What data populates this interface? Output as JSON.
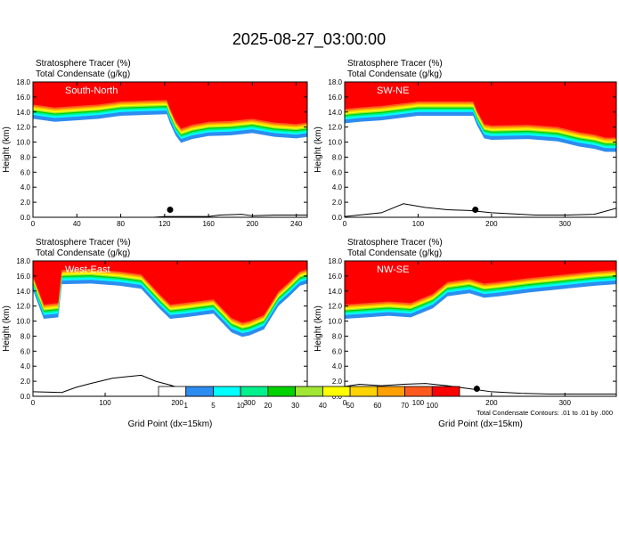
{
  "figure": {
    "title": "2025-08-27_03:00:00",
    "subtitle_line1": "Stratosphere Tracer   (%)",
    "subtitle_line2": "Total Condensate   (g/kg)",
    "contour_note": "Total Condensate Contours: .01 to .01 by .000",
    "colors": [
      "#ffffff",
      "#2d8cf0",
      "#00ffff",
      "#00f08c",
      "#00d200",
      "#a0e632",
      "#ffff00",
      "#ffd200",
      "#ffa000",
      "#ff5a1e",
      "#ff0000"
    ]
  },
  "chart_data": [
    {
      "type": "heatmap",
      "panel_label": "South-North",
      "xlabel": "",
      "ylabel": "Height (km)",
      "xlim": [
        0,
        250
      ],
      "ylim": [
        0,
        18
      ],
      "xticks": [
        0,
        40,
        80,
        120,
        160,
        200,
        240
      ],
      "yticks": [
        "0.0",
        "2.0",
        "4.0",
        "6.0",
        "8.0",
        "10.0",
        "12.0",
        "14.0",
        "16.0",
        "18.0"
      ],
      "tropopause_km": [
        [
          0,
          13.6
        ],
        [
          20,
          13.2
        ],
        [
          40,
          13.4
        ],
        [
          60,
          13.6
        ],
        [
          80,
          14.0
        ],
        [
          100,
          14.1
        ],
        [
          122,
          14.2
        ],
        [
          125,
          13.0
        ],
        [
          130,
          11.4
        ],
        [
          135,
          10.4
        ],
        [
          145,
          10.9
        ],
        [
          160,
          11.3
        ],
        [
          180,
          11.4
        ],
        [
          200,
          11.7
        ],
        [
          220,
          11.2
        ],
        [
          240,
          11.0
        ],
        [
          250,
          11.2
        ]
      ],
      "terrain_km": [
        [
          0,
          0
        ],
        [
          30,
          0
        ],
        [
          60,
          0
        ],
        [
          90,
          0
        ],
        [
          110,
          0
        ],
        [
          120,
          0.1
        ],
        [
          160,
          0.1
        ],
        [
          170,
          0.3
        ],
        [
          190,
          0.4
        ],
        [
          200,
          0.2
        ],
        [
          220,
          0.3
        ],
        [
          250,
          0.3
        ]
      ],
      "marker": [
        125,
        1.0
      ]
    },
    {
      "type": "heatmap",
      "panel_label": "SW-NE",
      "xlabel": "",
      "ylabel": "Height (km)",
      "xlim": [
        0,
        370
      ],
      "ylim": [
        0,
        18
      ],
      "xticks": [
        0,
        100,
        200,
        300
      ],
      "yticks": [
        "0.0",
        "2.0",
        "4.0",
        "6.0",
        "8.0",
        "10.0",
        "12.0",
        "14.0",
        "16.0",
        "18.0"
      ],
      "tropopause_km": [
        [
          0,
          13.0
        ],
        [
          20,
          13.2
        ],
        [
          50,
          13.4
        ],
        [
          100,
          14.0
        ],
        [
          150,
          14.0
        ],
        [
          175,
          14.0
        ],
        [
          180,
          12.8
        ],
        [
          190,
          11.0
        ],
        [
          200,
          10.8
        ],
        [
          250,
          10.9
        ],
        [
          290,
          10.6
        ],
        [
          320,
          9.9
        ],
        [
          340,
          9.6
        ],
        [
          355,
          9.2
        ],
        [
          370,
          9.2
        ]
      ],
      "terrain_km": [
        [
          0,
          0.1
        ],
        [
          50,
          0.6
        ],
        [
          80,
          1.8
        ],
        [
          110,
          1.3
        ],
        [
          140,
          1.0
        ],
        [
          170,
          0.9
        ],
        [
          200,
          0.6
        ],
        [
          260,
          0.3
        ],
        [
          300,
          0.3
        ],
        [
          340,
          0.4
        ],
        [
          370,
          1.2
        ]
      ],
      "marker": [
        178,
        1.0
      ]
    },
    {
      "type": "heatmap",
      "panel_label": "West-East",
      "xlabel": "Grid Point (dx=15km)",
      "ylabel": "Height (km)",
      "xlim": [
        0,
        380
      ],
      "ylim": [
        0,
        18
      ],
      "xticks": [
        0,
        100,
        200,
        300
      ],
      "yticks": [
        "0.0",
        "2.0",
        "4.0",
        "6.0",
        "8.0",
        "10.0",
        "12.0",
        "14.0",
        "16.0",
        "18.0"
      ],
      "tropopause_km": [
        [
          0,
          14.6
        ],
        [
          15,
          10.8
        ],
        [
          35,
          11.0
        ],
        [
          40,
          15.4
        ],
        [
          80,
          15.5
        ],
        [
          120,
          15.2
        ],
        [
          150,
          14.8
        ],
        [
          175,
          12.2
        ],
        [
          190,
          10.8
        ],
        [
          210,
          11.0
        ],
        [
          250,
          11.5
        ],
        [
          275,
          9.0
        ],
        [
          290,
          8.4
        ],
        [
          300,
          8.6
        ],
        [
          320,
          9.4
        ],
        [
          340,
          12.5
        ],
        [
          355,
          13.8
        ],
        [
          370,
          15.2
        ],
        [
          380,
          15.5
        ]
      ],
      "terrain_km": [
        [
          0,
          0.6
        ],
        [
          40,
          0.5
        ],
        [
          60,
          1.2
        ],
        [
          80,
          1.7
        ],
        [
          110,
          2.4
        ],
        [
          130,
          2.6
        ],
        [
          150,
          2.8
        ],
        [
          170,
          2.0
        ],
        [
          190,
          1.5
        ],
        [
          210,
          0.9
        ],
        [
          240,
          0.7
        ],
        [
          260,
          0.4
        ],
        [
          300,
          0.3
        ],
        [
          340,
          0.3
        ],
        [
          380,
          0.3
        ]
      ],
      "marker": [
        192,
        1.0
      ]
    },
    {
      "type": "heatmap",
      "panel_label": "NW-SE",
      "xlabel": "Grid Point (dx=15km)",
      "ylabel": "Height (km)",
      "xlim": [
        0,
        370
      ],
      "ylim": [
        0,
        18
      ],
      "xticks": [
        0,
        100,
        200,
        300
      ],
      "yticks": [
        "0.0",
        "2.0",
        "4.0",
        "6.0",
        "8.0",
        "10.0",
        "12.0",
        "14.0",
        "16.0",
        "18.0"
      ],
      "tropopause_km": [
        [
          0,
          10.8
        ],
        [
          30,
          11.0
        ],
        [
          60,
          11.2
        ],
        [
          90,
          11.0
        ],
        [
          120,
          12.2
        ],
        [
          140,
          13.8
        ],
        [
          170,
          14.2
        ],
        [
          190,
          13.6
        ],
        [
          210,
          13.8
        ],
        [
          250,
          14.3
        ],
        [
          300,
          14.8
        ],
        [
          340,
          15.2
        ],
        [
          370,
          15.4
        ]
      ],
      "terrain_km": [
        [
          0,
          1.3
        ],
        [
          20,
          1.6
        ],
        [
          50,
          1.4
        ],
        [
          80,
          1.6
        ],
        [
          110,
          1.7
        ],
        [
          140,
          1.4
        ],
        [
          170,
          1.0
        ],
        [
          200,
          0.6
        ],
        [
          240,
          0.4
        ],
        [
          280,
          0.3
        ],
        [
          320,
          0.3
        ],
        [
          370,
          0.3
        ]
      ],
      "marker": [
        180,
        1.0
      ]
    }
  ],
  "colorbar": {
    "labels": [
      "1",
      "5",
      "10",
      "20",
      "30",
      "40",
      "50",
      "60",
      "70",
      "100"
    ]
  }
}
